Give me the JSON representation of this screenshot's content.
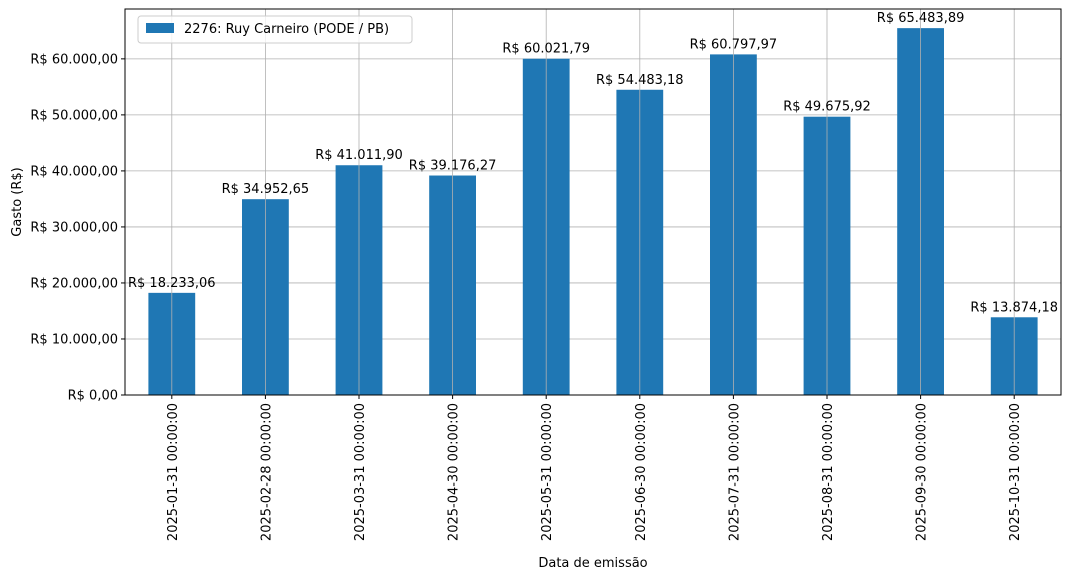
{
  "chart_data": {
    "type": "bar",
    "categories": [
      "2025-01-31 00:00:00",
      "2025-02-28 00:00:00",
      "2025-03-31 00:00:00",
      "2025-04-30 00:00:00",
      "2025-05-31 00:00:00",
      "2025-06-30 00:00:00",
      "2025-07-31 00:00:00",
      "2025-08-31 00:00:00",
      "2025-09-30 00:00:00",
      "2025-10-31 00:00:00"
    ],
    "series": [
      {
        "name": "2276: Ruy Carneiro (PODE / PB)",
        "color": "#1f77b4",
        "values": [
          18233.06,
          34952.65,
          41011.9,
          39176.27,
          60021.79,
          54483.18,
          60797.97,
          49675.92,
          65483.89,
          13874.18
        ]
      }
    ],
    "data_labels": [
      "R$ 18.233,06",
      "R$ 34.952,65",
      "R$ 41.011,90",
      "R$ 39.176,27",
      "R$ 60.021,79",
      "R$ 54.483,18",
      "R$ 60.797,97",
      "R$ 49.675,92",
      "R$ 65.483,89",
      "R$ 13.874,18"
    ],
    "xlabel": "Data de emissão",
    "ylabel": "Gasto (R$)",
    "ylim": [
      0,
      68900
    ],
    "yticks": [
      0,
      10000,
      20000,
      30000,
      40000,
      50000,
      60000
    ],
    "ytick_labels": [
      "R$ 0,00",
      "R$ 10.000,00",
      "R$ 20.000,00",
      "R$ 30.000,00",
      "R$ 40.000,00",
      "R$ 50.000,00",
      "R$ 60.000,00"
    ],
    "grid": true,
    "legend_position": "top-left"
  }
}
